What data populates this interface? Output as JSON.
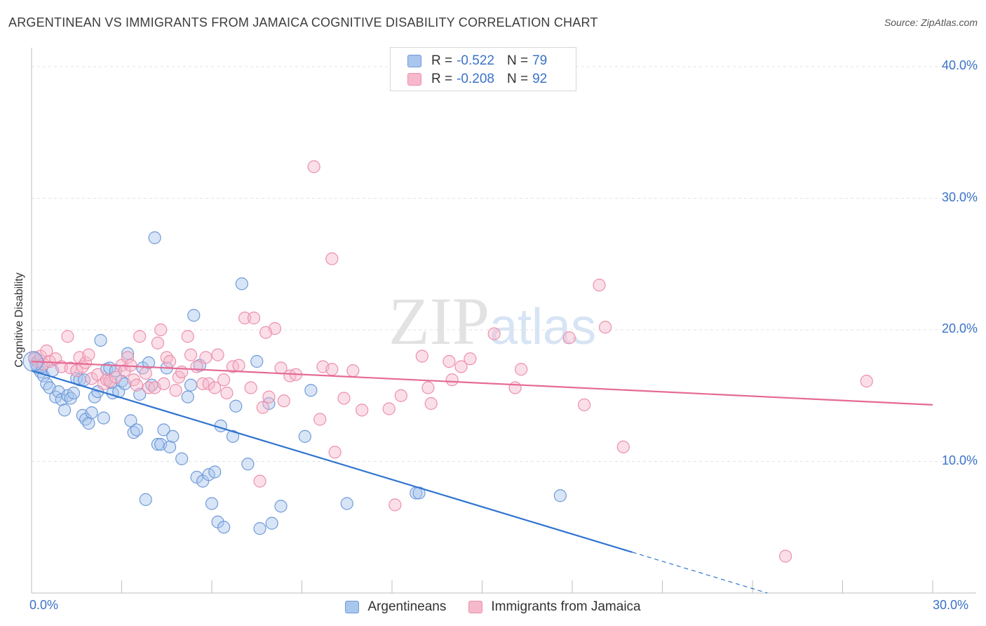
{
  "title": "ARGENTINEAN VS IMMIGRANTS FROM JAMAICA COGNITIVE DISABILITY CORRELATION CHART",
  "source": "Source: ZipAtlas.com",
  "watermark": {
    "zip": "ZIP",
    "atlas": "atlas"
  },
  "colors": {
    "blue_fill": "#a9c6ee",
    "blue_stroke": "#6f9ad8",
    "blue_line": "#2f74d0",
    "pink_fill": "#f6b9cb",
    "pink_stroke": "#ec8fab",
    "pink_line": "#e56a93",
    "tick_text": "#3a72c8",
    "grid": "#e3e3e3"
  },
  "legend": {
    "rows": [
      {
        "r_label": "R =",
        "r_value": "-0.522",
        "n_label": "N =",
        "n_value": "79"
      },
      {
        "r_label": "R =",
        "r_value": "-0.208",
        "n_label": "N =",
        "n_value": "92"
      }
    ]
  },
  "chart_data": {
    "type": "scatter",
    "title": "ARGENTINEAN VS IMMIGRANTS FROM JAMAICA COGNITIVE DISABILITY CORRELATION CHART",
    "xlabel": "",
    "ylabel": "Cognitive Disability",
    "xlim": [
      0,
      30
    ],
    "ylim": [
      0,
      40.8
    ],
    "x_tick_labels": [
      "0.0%",
      "30.0%"
    ],
    "y_ticks": [
      10,
      20,
      30,
      40
    ],
    "y_tick_labels": [
      "10.0%",
      "20.0%",
      "30.0%",
      "40.0%"
    ],
    "grid": true,
    "legend_position": "top-center",
    "series": [
      {
        "name": "Argentineans",
        "color": "#a9c6ee",
        "trend": {
          "x": [
            0,
            20
          ],
          "y": [
            16.9,
            3.1
          ],
          "dashed_extension_to_x": 24.5
        },
        "points": [
          [
            0.1,
            17.8
          ],
          [
            0.2,
            17.1
          ],
          [
            0.3,
            16.8
          ],
          [
            0.4,
            16.5
          ],
          [
            0.5,
            15.9
          ],
          [
            0.6,
            15.6
          ],
          [
            0.7,
            16.9
          ],
          [
            0.8,
            14.9
          ],
          [
            0.9,
            15.3
          ],
          [
            1.0,
            14.7
          ],
          [
            1.1,
            13.9
          ],
          [
            1.2,
            15.0
          ],
          [
            1.3,
            14.8
          ],
          [
            1.4,
            15.2
          ],
          [
            1.5,
            16.3
          ],
          [
            1.6,
            16.2
          ],
          [
            1.7,
            13.5
          ],
          [
            1.8,
            13.2
          ],
          [
            1.9,
            12.9
          ],
          [
            2.0,
            13.7
          ],
          [
            2.1,
            14.9
          ],
          [
            2.2,
            15.3
          ],
          [
            2.3,
            19.2
          ],
          [
            2.4,
            13.3
          ],
          [
            2.5,
            17.0
          ],
          [
            2.6,
            17.1
          ],
          [
            2.7,
            15.2
          ],
          [
            2.8,
            16.9
          ],
          [
            2.9,
            15.3
          ],
          [
            3.0,
            16.1
          ],
          [
            3.1,
            15.9
          ],
          [
            3.2,
            18.2
          ],
          [
            3.3,
            13.1
          ],
          [
            3.4,
            12.2
          ],
          [
            3.5,
            12.4
          ],
          [
            3.6,
            15.1
          ],
          [
            3.7,
            17.1
          ],
          [
            3.8,
            7.1
          ],
          [
            3.9,
            17.5
          ],
          [
            4.0,
            15.8
          ],
          [
            4.1,
            27.0
          ],
          [
            4.2,
            11.3
          ],
          [
            4.3,
            11.3
          ],
          [
            4.4,
            12.4
          ],
          [
            4.5,
            17.1
          ],
          [
            4.6,
            11.1
          ],
          [
            4.7,
            11.9
          ],
          [
            5.0,
            10.2
          ],
          [
            5.2,
            14.9
          ],
          [
            5.3,
            15.8
          ],
          [
            5.4,
            21.1
          ],
          [
            5.5,
            8.8
          ],
          [
            5.6,
            17.3
          ],
          [
            5.7,
            8.5
          ],
          [
            5.9,
            9.0
          ],
          [
            6.0,
            6.8
          ],
          [
            6.1,
            9.2
          ],
          [
            6.2,
            5.4
          ],
          [
            6.3,
            12.7
          ],
          [
            6.4,
            5.0
          ],
          [
            6.7,
            11.9
          ],
          [
            6.8,
            14.2
          ],
          [
            7.0,
            23.5
          ],
          [
            7.2,
            9.8
          ],
          [
            7.5,
            17.6
          ],
          [
            7.6,
            4.9
          ],
          [
            7.9,
            14.4
          ],
          [
            8.0,
            5.3
          ],
          [
            8.3,
            6.6
          ],
          [
            9.1,
            11.9
          ],
          [
            9.3,
            15.4
          ],
          [
            10.5,
            6.8
          ],
          [
            12.8,
            7.6
          ],
          [
            12.9,
            7.6
          ],
          [
            17.6,
            7.4
          ],
          [
            0.15,
            17.4
          ],
          [
            0.35,
            17.2
          ],
          [
            1.75,
            16.2
          ],
          [
            2.65,
            16.0
          ]
        ]
      },
      {
        "name": "Immigrants from Jamaica",
        "color": "#f6b9cb",
        "trend": {
          "x": [
            0,
            30
          ],
          "y": [
            17.6,
            14.3
          ]
        },
        "points": [
          [
            0.1,
            17.9
          ],
          [
            0.2,
            17.6
          ],
          [
            0.3,
            18.0
          ],
          [
            0.4,
            17.4
          ],
          [
            0.5,
            18.4
          ],
          [
            0.6,
            17.6
          ],
          [
            0.8,
            17.8
          ],
          [
            1.0,
            17.2
          ],
          [
            1.2,
            19.5
          ],
          [
            1.3,
            17.1
          ],
          [
            1.5,
            16.9
          ],
          [
            1.6,
            17.9
          ],
          [
            1.7,
            17.2
          ],
          [
            1.8,
            17.5
          ],
          [
            1.9,
            18.1
          ],
          [
            2.0,
            16.3
          ],
          [
            2.2,
            16.6
          ],
          [
            2.4,
            15.9
          ],
          [
            2.5,
            16.2
          ],
          [
            2.6,
            16.1
          ],
          [
            2.8,
            16.4
          ],
          [
            3.0,
            17.3
          ],
          [
            3.1,
            16.9
          ],
          [
            3.2,
            17.9
          ],
          [
            3.3,
            17.3
          ],
          [
            3.4,
            16.2
          ],
          [
            3.5,
            15.8
          ],
          [
            3.6,
            19.5
          ],
          [
            3.8,
            16.7
          ],
          [
            3.9,
            15.6
          ],
          [
            4.1,
            15.6
          ],
          [
            4.2,
            19.0
          ],
          [
            4.3,
            20.0
          ],
          [
            4.4,
            15.9
          ],
          [
            4.5,
            17.9
          ],
          [
            4.6,
            17.6
          ],
          [
            4.8,
            15.4
          ],
          [
            4.9,
            16.4
          ],
          [
            5.0,
            16.8
          ],
          [
            5.2,
            19.5
          ],
          [
            5.3,
            18.1
          ],
          [
            5.5,
            17.2
          ],
          [
            5.7,
            15.9
          ],
          [
            5.8,
            17.9
          ],
          [
            5.9,
            15.9
          ],
          [
            6.1,
            15.6
          ],
          [
            6.2,
            18.1
          ],
          [
            6.4,
            16.2
          ],
          [
            6.5,
            15.2
          ],
          [
            6.7,
            17.2
          ],
          [
            6.9,
            17.3
          ],
          [
            7.1,
            20.9
          ],
          [
            7.3,
            15.6
          ],
          [
            7.4,
            20.9
          ],
          [
            7.6,
            8.5
          ],
          [
            7.7,
            14.1
          ],
          [
            7.9,
            14.9
          ],
          [
            8.1,
            20.1
          ],
          [
            8.3,
            17.1
          ],
          [
            8.4,
            14.6
          ],
          [
            8.6,
            16.5
          ],
          [
            8.8,
            16.6
          ],
          [
            9.4,
            32.4
          ],
          [
            9.6,
            13.2
          ],
          [
            9.7,
            17.2
          ],
          [
            10.0,
            25.4
          ],
          [
            10.1,
            10.7
          ],
          [
            10.4,
            14.8
          ],
          [
            10.7,
            16.9
          ],
          [
            11.0,
            13.9
          ],
          [
            11.9,
            14.0
          ],
          [
            12.1,
            6.7
          ],
          [
            12.3,
            15.0
          ],
          [
            13.0,
            18.0
          ],
          [
            13.2,
            15.6
          ],
          [
            13.3,
            14.4
          ],
          [
            13.9,
            17.6
          ],
          [
            14.0,
            16.2
          ],
          [
            14.3,
            17.2
          ],
          [
            14.6,
            17.8
          ],
          [
            15.4,
            19.7
          ],
          [
            16.1,
            15.6
          ],
          [
            16.3,
            17.0
          ],
          [
            17.9,
            19.4
          ],
          [
            18.4,
            14.3
          ],
          [
            18.9,
            23.4
          ],
          [
            19.1,
            20.2
          ],
          [
            19.7,
            11.1
          ],
          [
            25.1,
            2.8
          ],
          [
            27.8,
            16.1
          ],
          [
            7.8,
            19.8
          ],
          [
            10.0,
            17.0
          ]
        ]
      }
    ]
  },
  "bottom_legend": {
    "items": [
      "Argentineans",
      "Immigrants from Jamaica"
    ]
  }
}
